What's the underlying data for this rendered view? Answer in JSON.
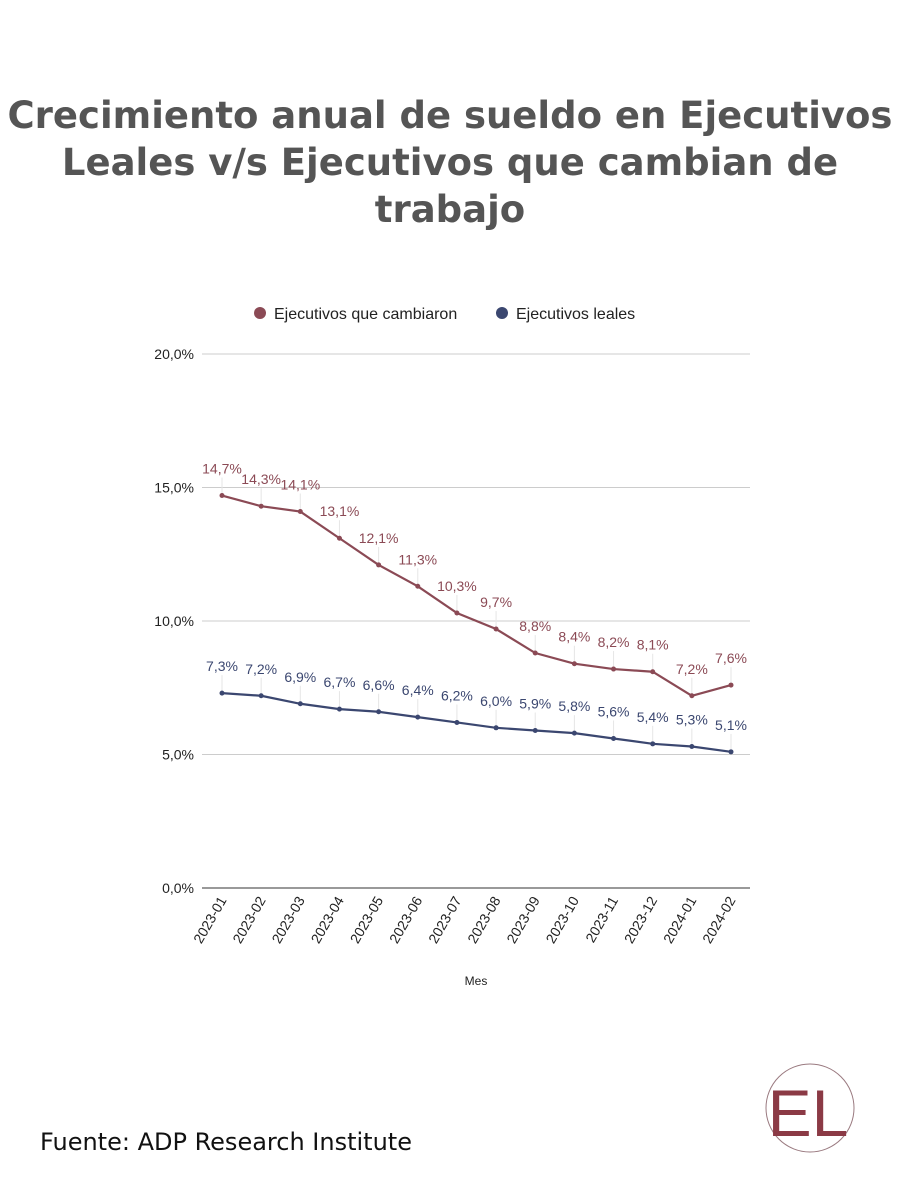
{
  "title": "Crecimiento anual de sueldo en Ejecutivos Leales v/s Ejecutivos que cambian de trabajo",
  "source": "Fuente: ADP Research Institute",
  "logo_text": "EL",
  "colors": {
    "cambiaron": "#8b4a55",
    "leales": "#3b4770",
    "logo": "#8b3a45"
  },
  "chart_data": {
    "type": "line",
    "title": "",
    "xlabel": "Mes",
    "ylabel": "",
    "ylim": [
      0,
      20
    ],
    "yticks": [
      "0,0%",
      "5,0%",
      "10,0%",
      "15,0%",
      "20,0%"
    ],
    "ytick_values": [
      0,
      5,
      10,
      15,
      20
    ],
    "grid": true,
    "legend_position": "top",
    "categories": [
      "2023-01",
      "2023-02",
      "2023-03",
      "2023-04",
      "2023-05",
      "2023-06",
      "2023-07",
      "2023-08",
      "2023-09",
      "2023-10",
      "2023-11",
      "2023-12",
      "2024-01",
      "2024-02"
    ],
    "series": [
      {
        "name": "Ejecutivos que cambiaron",
        "values": [
          14.7,
          14.3,
          14.1,
          13.1,
          12.1,
          11.3,
          10.3,
          9.7,
          8.8,
          8.4,
          8.2,
          8.1,
          7.2,
          7.6
        ],
        "labels": [
          "14,7%",
          "14,3%",
          "14,1%",
          "13,1%",
          "12,1%",
          "11,3%",
          "10,3%",
          "9,7%",
          "8,8%",
          "8,4%",
          "8,2%",
          "8,1%",
          "7,2%",
          "7,6%"
        ]
      },
      {
        "name": "Ejecutivos leales",
        "values": [
          7.3,
          7.2,
          6.9,
          6.7,
          6.6,
          6.4,
          6.2,
          6.0,
          5.9,
          5.8,
          5.6,
          5.4,
          5.3,
          5.1
        ],
        "labels": [
          "7,3%",
          "7,2%",
          "6,9%",
          "6,7%",
          "6,6%",
          "6,4%",
          "6,2%",
          "6,0%",
          "5,9%",
          "5,8%",
          "5,6%",
          "5,4%",
          "5,3%",
          "5,1%"
        ]
      }
    ]
  }
}
